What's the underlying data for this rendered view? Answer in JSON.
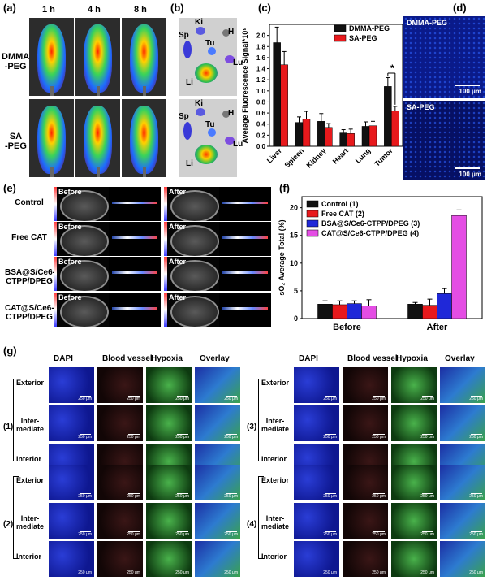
{
  "panel_labels": {
    "a": "(a)",
    "b": "(b)",
    "c": "(c)",
    "d": "(d)",
    "e": "(e)",
    "f": "(f)",
    "g": "(g)"
  },
  "panel_a": {
    "time_points": [
      "1 h",
      "4 h",
      "8 h"
    ],
    "rows": [
      "DMMA\n-PEG",
      "SA\n-PEG"
    ]
  },
  "panel_b": {
    "organs_top": [
      "Sp",
      "Ki",
      "H",
      "Tu",
      "Lu",
      "Li"
    ],
    "organs_bottom": [
      "Sp",
      "Ki",
      "H",
      "Tu",
      "Lu",
      "Li"
    ]
  },
  "panel_d": {
    "top_label": "DMMA-PEG",
    "bottom_label": "SA-PEG",
    "scale_top": "100 μm",
    "scale_bottom": "100 μm"
  },
  "panel_e": {
    "rows": [
      "Control",
      "Free CAT",
      "BSA@S/Ce6-\nCTPP/DPEG",
      "CAT@S/Ce6-\nCTPP/DPEG"
    ],
    "before": "Before",
    "after": "After"
  },
  "panel_g": {
    "columns": [
      "DAPI",
      "Blood vessel",
      "Hypoxia",
      "Overlay"
    ],
    "regions": [
      "Exterior",
      "Inter-\nmediate",
      "Interior"
    ],
    "group_labels": [
      "(1)",
      "(2)",
      "(3)",
      "(4)"
    ],
    "scale": "250 μm"
  },
  "colors": {
    "black": "#111111",
    "red": "#e8191c",
    "blue": "#1f28d8",
    "magenta": "#e44de4"
  },
  "chart_data": [
    {
      "type": "bar",
      "panel": "c",
      "ylabel": "Average Fluorescence Signal*10⁸",
      "categories": [
        "Liver",
        "Spleen",
        "Kidney",
        "Heart",
        "Lung",
        "Tumor"
      ],
      "yticks": [
        "0.0",
        "0.2",
        "0.4",
        "0.6",
        "0.8",
        "1.0",
        "1.2",
        "1.4",
        "1.6",
        "1.8",
        "2.0"
      ],
      "ylim": [
        0,
        2.2
      ],
      "legend": "top-right",
      "series": [
        {
          "name": "DMMA-PEG",
          "color": "#111111",
          "values": [
            1.87,
            0.43,
            0.45,
            0.24,
            0.36,
            1.08
          ],
          "errors": [
            0.28,
            0.1,
            0.14,
            0.06,
            0.08,
            0.16
          ]
        },
        {
          "name": "SA-PEG",
          "color": "#e8191c",
          "values": [
            1.47,
            0.49,
            0.34,
            0.23,
            0.37,
            0.64
          ],
          "errors": [
            0.24,
            0.14,
            0.07,
            0.08,
            0.08,
            0.08
          ]
        }
      ],
      "annotation": "*"
    },
    {
      "type": "bar",
      "panel": "f",
      "ylabel": "sO₂ Average Total (%)",
      "categories": [
        "Before",
        "After"
      ],
      "yticks": [
        "0",
        "5",
        "10",
        "15",
        "20"
      ],
      "ylim": [
        0,
        22
      ],
      "legend": "top-left",
      "series": [
        {
          "name": "Control (1)",
          "color": "#111111",
          "values": [
            2.6,
            2.6
          ],
          "errors": [
            0.6,
            0.3
          ]
        },
        {
          "name": "Free CAT (2)",
          "color": "#e8191c",
          "values": [
            2.5,
            2.4
          ],
          "errors": [
            0.7,
            1.1
          ]
        },
        {
          "name": "BSA@S/Ce6-CTPP/DPEG (3)",
          "color": "#1f28d8",
          "values": [
            2.7,
            4.5
          ],
          "errors": [
            0.5,
            0.9
          ]
        },
        {
          "name": "CAT@S/Ce6-CTPP/DPEG (4)",
          "color": "#e44de4",
          "values": [
            2.3,
            18.6
          ],
          "errors": [
            1.1,
            1.0
          ]
        }
      ]
    }
  ]
}
